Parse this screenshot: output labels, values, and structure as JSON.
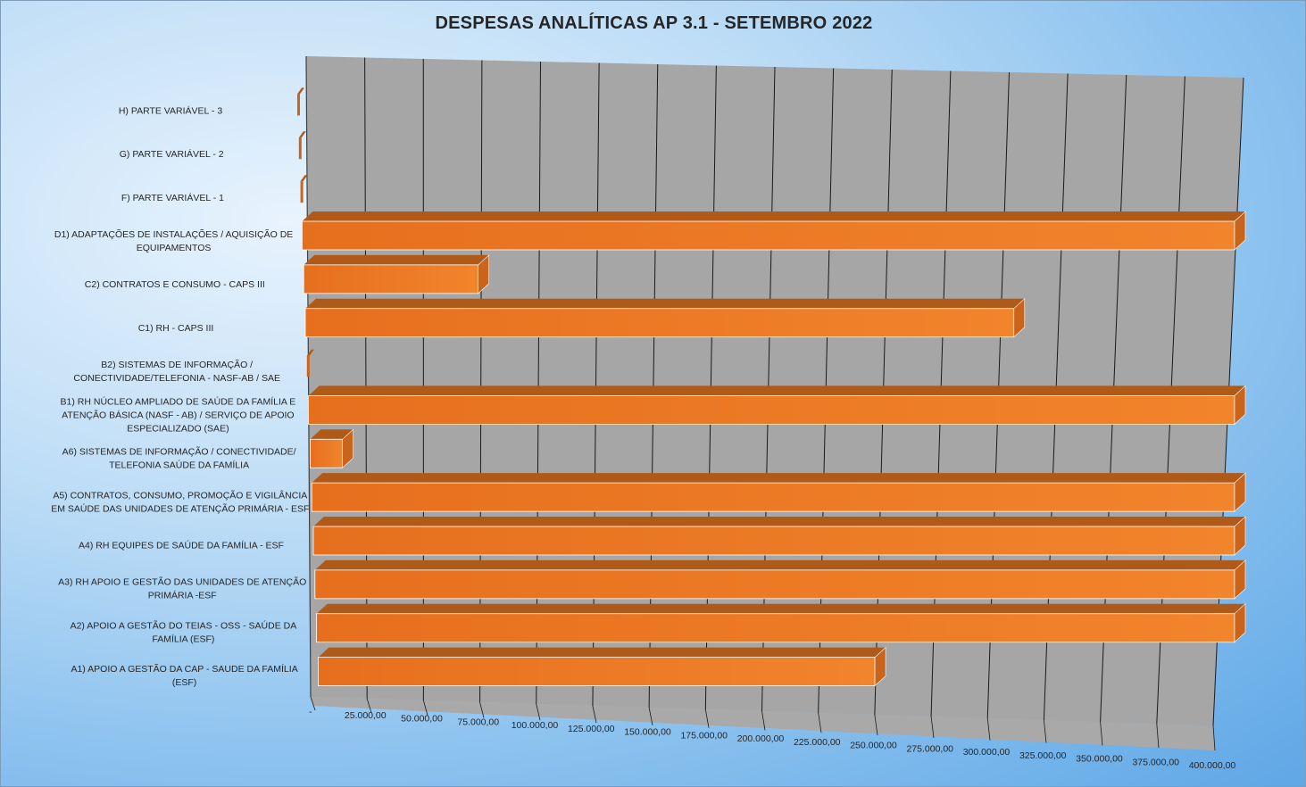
{
  "chart_data": {
    "type": "bar",
    "orientation": "horizontal",
    "style": "3d",
    "title": "DESPESAS ANALÍTICAS AP 3.1 - SETEMBRO 2022",
    "xlabel": "",
    "ylabel": "",
    "xlim": [
      0,
      400000
    ],
    "grid": true,
    "legend": "none",
    "categories": [
      "H) PARTE VARIÁVEL - 3",
      "G) PARTE VARIÁVEL - 2",
      "F) PARTE VARIÁVEL - 1",
      "D1) ADAPTAÇÕES DE INSTALAÇÕES / AQUISIÇÃO DE EQUIPAMENTOS",
      "C2) CONTRATOS E CONSUMO - CAPS III",
      "C1) RH - CAPS III",
      "B2) SISTEMAS DE INFORMAÇÃO / CONECTIVIDADE/TELEFONIA - NASF-AB / SAE",
      "B1) RH NÚCLEO AMPLIADO DE SAÚDE DA FAMÍLIA E ATENÇÃO BÁSICA (NASF - AB) / SERVIÇO DE APOIO ESPECIALIZADO (SAE)",
      "A6) SISTEMAS DE INFORMAÇÃO / CONECTIVIDADE/ TELEFONIA SAÚDE DA FAMÍLIA",
      "A5) CONTRATOS, CONSUMO, PROMOÇÃO E VIGILÂNCIA EM SAÚDE DAS UNIDADES DE ATENÇÃO PRIMÁRIA - ESF",
      "A4) RH EQUIPES DE SAÚDE DA FAMÍLIA - ESF",
      "A3) RH APOIO E GESTÃO DAS UNIDADES DE ATENÇÃO PRIMÁRIA -ESF",
      "A2) APOIO A GESTÃO DO TEIAS - OSS - SAÚDE DA FAMÍLIA (ESF)",
      "A1) APOIO A GESTÃO DA CAP - SAUDE DA FAMÍLIA (ESF)"
    ],
    "label_lines": [
      [
        "H) PARTE VARIÁVEL - 3"
      ],
      [
        "G) PARTE VARIÁVEL - 2"
      ],
      [
        "F) PARTE VARIÁVEL - 1"
      ],
      [
        "D1) ADAPTAÇÕES DE INSTALAÇÕES / AQUISIÇÃO DE",
        "EQUIPAMENTOS"
      ],
      [
        "C2) CONTRATOS E CONSUMO - CAPS III"
      ],
      [
        "C1) RH - CAPS III"
      ],
      [
        "B2) SISTEMAS DE INFORMAÇÃO /",
        "CONECTIVIDADE/TELEFONIA - NASF-AB / SAE"
      ],
      [
        "B1) RH NÚCLEO AMPLIADO DE SAÚDE DA FAMÍLIA E",
        "ATENÇÃO BÁSICA (NASF - AB) / SERVIÇO DE APOIO",
        "ESPECIALIZADO (SAE)"
      ],
      [
        "A6) SISTEMAS DE INFORMAÇÃO / CONECTIVIDADE/",
        "TELEFONIA SAÚDE DA FAMÍLIA"
      ],
      [
        "A5) CONTRATOS, CONSUMO, PROMOÇÃO E VIGILÂNCIA",
        "EM SAÚDE DAS UNIDADES DE ATENÇÃO PRIMÁRIA - ESF"
      ],
      [
        "A4) RH EQUIPES DE SAÚDE DA FAMÍLIA - ESF"
      ],
      [
        "A3) RH APOIO E GESTÃO DAS UNIDADES DE ATENÇÃO",
        "PRIMÁRIA -ESF"
      ],
      [
        "A2) APOIO A GESTÃO DO TEIAS - OSS - SAÚDE DA",
        "FAMÍLIA (ESF)"
      ],
      [
        "A1) APOIO A GESTÃO DA CAP - SAUDE DA FAMÍLIA",
        "(ESF)"
      ]
    ],
    "values": [
      0,
      0,
      0,
      400000,
      75000,
      305000,
      0,
      400000,
      14000,
      400000,
      400000,
      400000,
      400000,
      243000
    ],
    "tick_labels": [
      "-",
      "25.000,00",
      "50.000,00",
      "75.000,00",
      "100.000,00",
      "125.000,00",
      "150.000,00",
      "175.000,00",
      "200.000,00",
      "225.000,00",
      "250.000,00",
      "275.000,00",
      "300.000,00",
      "325.000,00",
      "350.000,00",
      "375.000,00",
      "400.000,00"
    ],
    "colors": {
      "bar_front": "#ee7722",
      "bar_top": "#b05a1a",
      "bar_side": "#c9641c",
      "wall": "#a6a6a6",
      "floor": "#a9a9a9",
      "grid": "#1a1a1a",
      "background": "#9cc9f0"
    }
  }
}
